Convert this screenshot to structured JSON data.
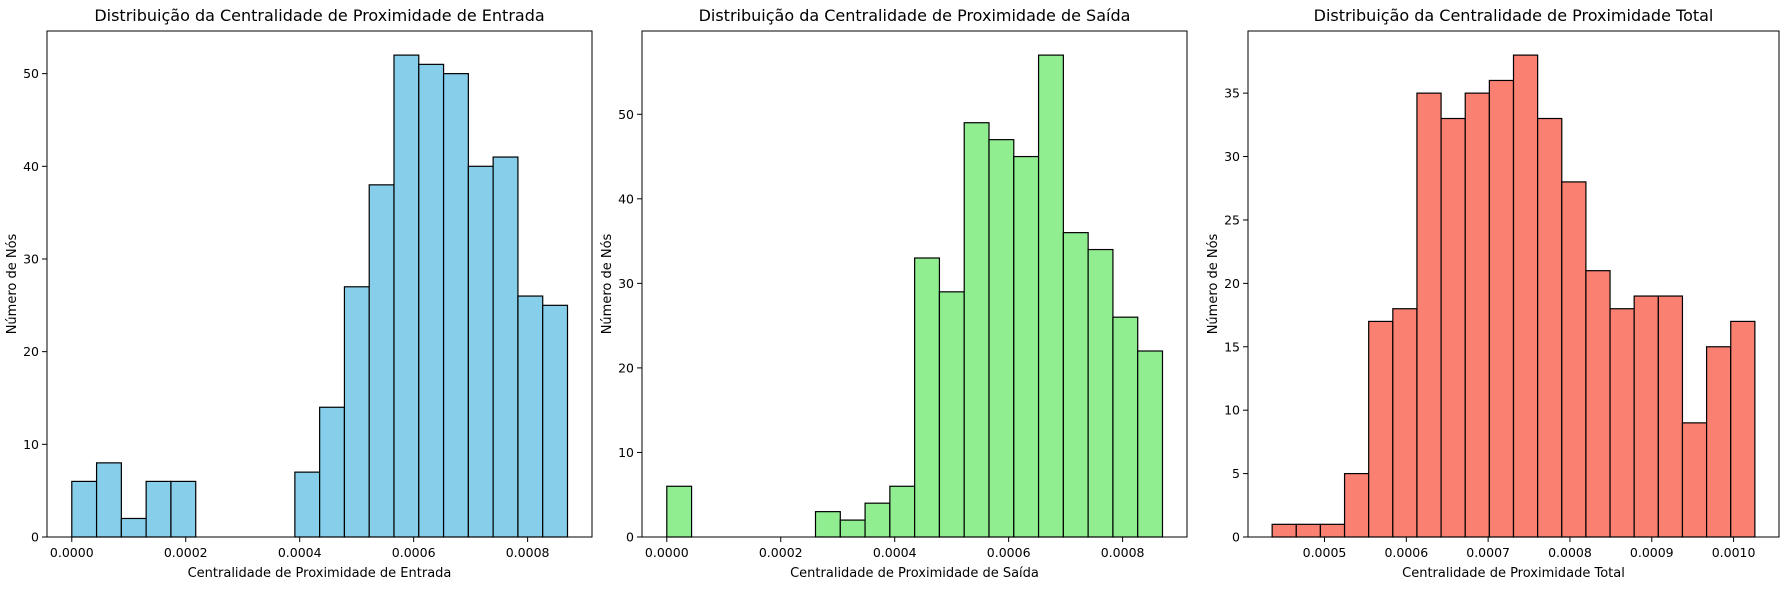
{
  "chart_data": [
    {
      "type": "bar",
      "title": "Distribuição da Centralidade de Proximidade de Entrada",
      "xlabel": "Centralidade de Proximidade de Entrada",
      "ylabel": "Número de Nós",
      "xlim": [
        -4.35e-05,
        0.000913
      ],
      "ylim": [
        0,
        54.6
      ],
      "xticks": [
        0,
        0.0002,
        0.0004,
        0.0006,
        0.0008
      ],
      "xtick_labels": [
        "0.0000",
        "0.0002",
        "0.0004",
        "0.0006",
        "0.0008"
      ],
      "yticks": [
        0,
        10,
        20,
        30,
        40,
        50
      ],
      "ytick_labels": [
        "0",
        "10",
        "20",
        "30",
        "40",
        "50"
      ],
      "bin_start": 0,
      "bin_width": 4.35e-05,
      "values": [
        6,
        8,
        2,
        6,
        6,
        0,
        0,
        0,
        0,
        7,
        14,
        27,
        38,
        52,
        51,
        50,
        40,
        41,
        26,
        25
      ],
      "color": "#87CEEB",
      "edge_color": "#000000",
      "grid": false
    },
    {
      "type": "bar",
      "title": "Distribuição da Centralidade de Proximidade de Saída",
      "xlabel": "Centralidade de Proximidade de Saída",
      "ylabel": "Número de Nós",
      "xlim": [
        -4.35e-05,
        0.000913
      ],
      "ylim": [
        0,
        59.85
      ],
      "xticks": [
        0,
        0.0002,
        0.0004,
        0.0006,
        0.0008
      ],
      "xtick_labels": [
        "0.0000",
        "0.0002",
        "0.0004",
        "0.0006",
        "0.0008"
      ],
      "yticks": [
        0,
        10,
        20,
        30,
        40,
        50
      ],
      "ytick_labels": [
        "0",
        "10",
        "20",
        "30",
        "40",
        "50"
      ],
      "bin_start": 0,
      "bin_width": 4.35e-05,
      "values": [
        6,
        0,
        0,
        0,
        0,
        0,
        3,
        2,
        4,
        6,
        33,
        29,
        49,
        47,
        45,
        57,
        36,
        34,
        26,
        22
      ],
      "color": "#90EE90",
      "edge_color": "#000000",
      "grid": false
    },
    {
      "type": "bar",
      "title": "Distribuição da Centralidade de Proximidade Total",
      "xlabel": "Centralidade de Proximidade Total",
      "ylabel": "Número de Nós",
      "xlim": [
        0.0004065,
        0.0010555
      ],
      "ylim": [
        0,
        39.9
      ],
      "xticks": [
        0.0005,
        0.0006,
        0.0007,
        0.0008,
        0.0009,
        0.001
      ],
      "xtick_labels": [
        "0.0005",
        "0.0006",
        "0.0007",
        "0.0008",
        "0.0009",
        "0.0010"
      ],
      "yticks": [
        0,
        5,
        10,
        15,
        20,
        25,
        30,
        35
      ],
      "ytick_labels": [
        "0",
        "5",
        "10",
        "15",
        "20",
        "25",
        "30",
        "35"
      ],
      "bin_start": 0.000436,
      "bin_width": 2.95e-05,
      "values": [
        1,
        1,
        1,
        5,
        17,
        18,
        35,
        33,
        35,
        36,
        38,
        33,
        28,
        21,
        18,
        19,
        19,
        9,
        15,
        17
      ],
      "color": "#FA8072",
      "edge_color": "#000000",
      "grid": false
    }
  ]
}
